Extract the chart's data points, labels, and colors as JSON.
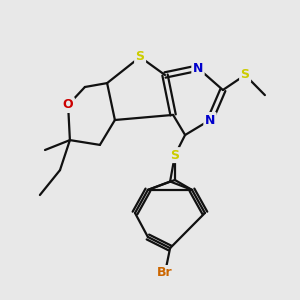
{
  "bg_color": "#e8e8e8",
  "atom_colors": {
    "S": "#cccc00",
    "N": "#0000cc",
    "O": "#cc0000",
    "Br": "#cc6600",
    "C": "#000000"
  },
  "bond_color": "#111111",
  "bond_width": 1.6
}
